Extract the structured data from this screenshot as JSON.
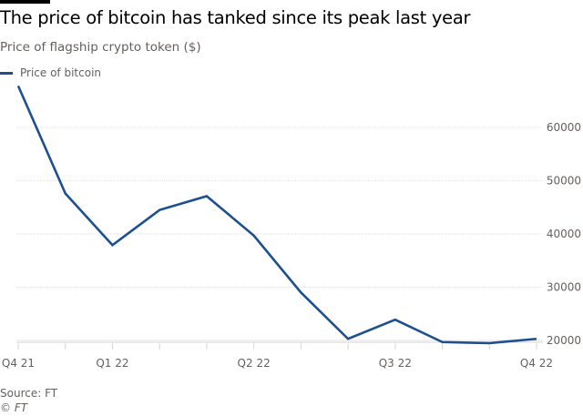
{
  "title": "The price of bitcoin has tanked since its peak last year",
  "subtitle": "Price of flagship crypto token ($)",
  "source": "Source: FT",
  "copyright": "© FT",
  "colors": {
    "series": "#1d4f91",
    "grid": "#e6e3e0",
    "text": "#66605c"
  },
  "chart_data": {
    "type": "line",
    "title": "The price of bitcoin has tanked since its peak last year",
    "subtitle": "Price of flagship crypto token ($)",
    "x": [
      "2021-11",
      "2021-12",
      "2022-01",
      "2022-02",
      "2022-03",
      "2022-04",
      "2022-05",
      "2022-06",
      "2022-07",
      "2022-08",
      "2022-09",
      "2022-10"
    ],
    "xticks": [
      {
        "label": "Q4 21",
        "x": "2021-11"
      },
      {
        "label": "Q1 22",
        "x": "2022-01"
      },
      {
        "label": "Q2 22",
        "x": "2022-04"
      },
      {
        "label": "Q3 22",
        "x": "2022-07"
      },
      {
        "label": "Q4 22",
        "x": "2022-10"
      }
    ],
    "series": [
      {
        "name": "Price of bitcoin",
        "values": [
          67800,
          47600,
          37900,
          44500,
          47100,
          39700,
          29000,
          20300,
          23900,
          19700,
          19500,
          20300
        ]
      }
    ],
    "yticks": [
      20000,
      30000,
      40000,
      50000,
      60000
    ],
    "ylim": [
      19500,
      68000
    ],
    "ylabel": "",
    "xlabel": "",
    "grid": true,
    "yaxis_side": "right",
    "legend": "top-left"
  }
}
